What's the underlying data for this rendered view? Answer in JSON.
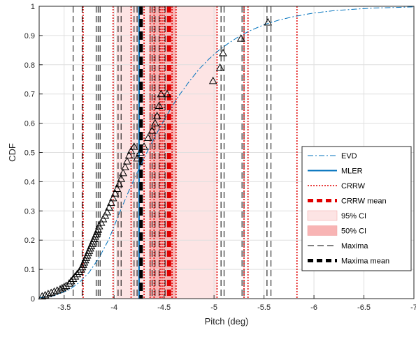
{
  "chart_data": {
    "type": "line",
    "xlabel": "Pitch (deg)",
    "ylabel": "CDF",
    "x_ticks": [
      "-3.5",
      "-4",
      "-4.5",
      "-5",
      "-5.5",
      "-6",
      "-6.5",
      "-7"
    ],
    "y_ticks": [
      "0",
      "0.1",
      "0.2",
      "0.3",
      "0.4",
      "0.5",
      "0.6",
      "0.7",
      "0.8",
      "0.9",
      "1"
    ],
    "xlim": [
      -3.25,
      -7.0
    ],
    "ylim": [
      0,
      1
    ],
    "x_reversed": true,
    "grid": true,
    "legend_position": "bottom-right",
    "legend": [
      {
        "label": "EVD",
        "style": "dashdot",
        "color": "#0072bd"
      },
      {
        "label": "MLER",
        "style": "solid",
        "color": "#0072bd"
      },
      {
        "label": "CRRW",
        "style": "dotted",
        "color": "#e00000"
      },
      {
        "label": "CRRW mean",
        "style": "thick-dashed",
        "color": "#e00000"
      },
      {
        "label": "95% CI",
        "style": "patch",
        "color": "#fde4e4"
      },
      {
        "label": "50% CI",
        "style": "patch",
        "color": "#f8b4b4"
      },
      {
        "label": "Maxima",
        "style": "dashed",
        "color": "#000000"
      },
      {
        "label": "Maxima mean",
        "style": "thick-dashed",
        "color": "#000000"
      }
    ],
    "ci95": [
      -4.02,
      -5.03
    ],
    "ci50": [
      -4.36,
      -4.62
    ],
    "mler": -4.25,
    "crrw_mean": -4.55,
    "maxima_mean": -4.27,
    "crrw_lines": [
      -3.69,
      -3.99,
      -4.17,
      -4.3,
      -4.36,
      -4.4,
      -4.46,
      -4.48,
      -4.5,
      -4.58,
      -4.62,
      -5.03,
      -5.3,
      -5.34,
      -5.83
    ],
    "maxima_lines": [
      -3.59,
      -3.68,
      -3.82,
      -3.84,
      -3.86,
      -4.04,
      -4.07,
      -4.2,
      -4.23,
      -4.36,
      -4.38,
      -4.41,
      -4.45,
      -4.51,
      -5.07,
      -5.1,
      -5.28,
      -5.3,
      -5.53,
      -5.57
    ],
    "evd": {
      "x": [
        -3.25,
        -3.4,
        -3.55,
        -3.65,
        -3.75,
        -3.85,
        -3.95,
        -4.05,
        -4.15,
        -4.25,
        -4.35,
        -4.45,
        -4.55,
        -4.65,
        -4.75,
        -4.85,
        -4.95,
        -5.05,
        -5.15,
        -5.25,
        -5.35,
        -5.5,
        -5.65,
        -5.8,
        -6.0,
        -6.2,
        -6.4,
        -6.6,
        -6.8,
        -7.0
      ],
      "y": [
        0.003,
        0.01,
        0.03,
        0.055,
        0.09,
        0.14,
        0.205,
        0.29,
        0.37,
        0.445,
        0.515,
        0.58,
        0.64,
        0.695,
        0.742,
        0.785,
        0.82,
        0.85,
        0.875,
        0.897,
        0.915,
        0.937,
        0.953,
        0.965,
        0.977,
        0.985,
        0.99,
        0.994,
        0.996,
        0.998
      ]
    },
    "maxima_cdf": {
      "x": [
        -3.28,
        -3.31,
        -3.34,
        -3.37,
        -3.4,
        -3.43,
        -3.46,
        -3.48,
        -3.5,
        -3.52,
        -3.55,
        -3.57,
        -3.59,
        -3.61,
        -3.63,
        -3.65,
        -3.67,
        -3.68,
        -3.69,
        -3.7,
        -3.71,
        -3.72,
        -3.73,
        -3.74,
        -3.75,
        -3.76,
        -3.77,
        -3.78,
        -3.79,
        -3.8,
        -3.81,
        -3.82,
        -3.83,
        -3.84,
        -3.85,
        -3.87,
        -3.89,
        -3.91,
        -3.93,
        -3.95,
        -3.97,
        -3.99,
        -4.01,
        -4.03,
        -4.05,
        -4.07,
        -4.09,
        -4.11,
        -4.13,
        -4.15,
        -4.17,
        -4.2,
        -4.23,
        -4.26,
        -4.3,
        -4.34,
        -4.38,
        -4.41,
        -4.43,
        -4.45,
        -4.47,
        -4.53,
        -4.99,
        -5.06,
        -5.09,
        -5.27,
        -5.54
      ],
      "y": [
        0.008,
        0.012,
        0.016,
        0.02,
        0.024,
        0.028,
        0.032,
        0.036,
        0.04,
        0.044,
        0.052,
        0.06,
        0.068,
        0.076,
        0.084,
        0.092,
        0.1,
        0.108,
        0.116,
        0.124,
        0.132,
        0.14,
        0.148,
        0.156,
        0.164,
        0.172,
        0.18,
        0.188,
        0.196,
        0.204,
        0.212,
        0.22,
        0.228,
        0.236,
        0.248,
        0.26,
        0.272,
        0.284,
        0.296,
        0.312,
        0.328,
        0.344,
        0.36,
        0.376,
        0.392,
        0.41,
        0.43,
        0.45,
        0.47,
        0.49,
        0.505,
        0.52,
        0.48,
        0.5,
        0.52,
        0.55,
        0.575,
        0.6,
        0.625,
        0.66,
        0.7,
        0.7,
        0.745,
        0.79,
        0.84,
        0.89,
        0.945
      ]
    }
  }
}
